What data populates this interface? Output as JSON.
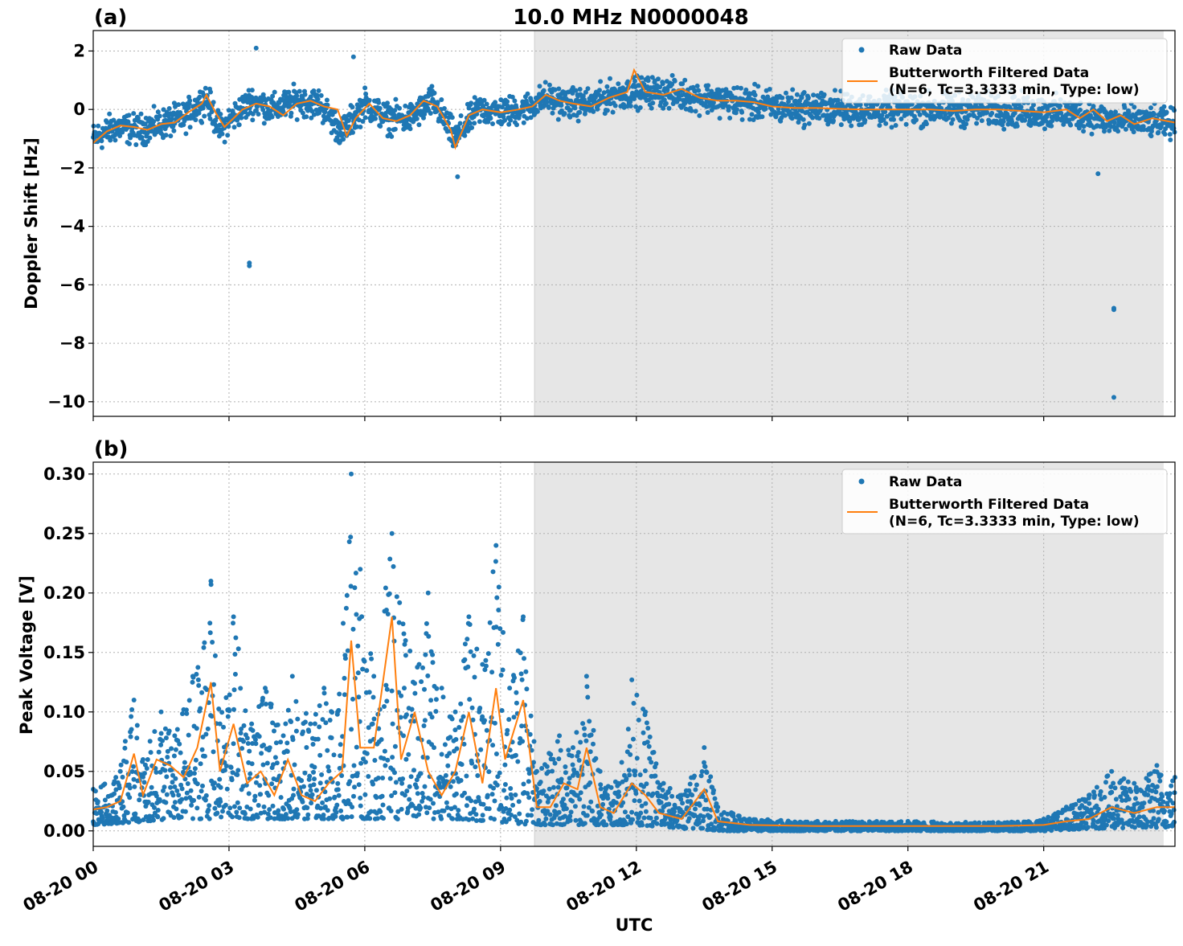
{
  "figure": {
    "title": "10.0 MHz N0000048",
    "xlabel": "UTC"
  },
  "colors": {
    "raw": "#1f77b4",
    "filtered": "#ff7f0e",
    "night_shade": "#e6e6e6",
    "grid": "#b0b0b0"
  },
  "legend": {
    "raw_label": "Raw Data",
    "filtered_label_line1": "Butterworth Filtered Data",
    "filtered_label_line2": "(N=6, Tc=3.3333 min, Type: low)",
    "placement": "upper right"
  },
  "chart_data": [
    {
      "panel_label": "(a)",
      "type": "scatter",
      "ylabel": "Doppler Shift [Hz]",
      "xlim_hours": [
        0,
        23.9
      ],
      "ylim": [
        -10.5,
        2.7
      ],
      "yticks": [
        2,
        0,
        -2,
        -4,
        -6,
        -8,
        -10
      ],
      "ytick_labels": [
        "2",
        "0",
        "−2",
        "−4",
        "−6",
        "−8",
        "−10"
      ],
      "shaded_region_hours": [
        9.75,
        23.65
      ],
      "grid": true,
      "series": [
        {
          "name": "Raw Data",
          "kind": "points",
          "band_center": [
            [
              0,
              -1.0
            ],
            [
              0.5,
              -0.6
            ],
            [
              1.0,
              -0.7
            ],
            [
              1.5,
              -0.5
            ],
            [
              2.0,
              -0.3
            ],
            [
              2.5,
              0.4
            ],
            [
              2.8,
              -0.7
            ],
            [
              3.2,
              -0.1
            ],
            [
              3.5,
              0.3
            ],
            [
              4.0,
              0.0
            ],
            [
              4.5,
              0.3
            ],
            [
              5.0,
              0.2
            ],
            [
              5.5,
              -0.8
            ],
            [
              6.0,
              0.2
            ],
            [
              6.5,
              -0.3
            ],
            [
              7.0,
              -0.3
            ],
            [
              7.5,
              0.3
            ],
            [
              8.0,
              -1.0
            ],
            [
              8.5,
              0.0
            ],
            [
              9.0,
              -0.1
            ],
            [
              9.5,
              0.0
            ],
            [
              10.0,
              0.4
            ],
            [
              10.5,
              0.2
            ],
            [
              11.0,
              0.2
            ],
            [
              11.5,
              0.5
            ],
            [
              12.0,
              0.6
            ],
            [
              12.5,
              0.6
            ],
            [
              13.0,
              0.5
            ],
            [
              13.5,
              0.4
            ],
            [
              14.0,
              0.3
            ],
            [
              14.5,
              0.2
            ],
            [
              15.0,
              0.1
            ],
            [
              16.0,
              0.05
            ],
            [
              17.0,
              0.0
            ],
            [
              18.0,
              0.0
            ],
            [
              19.0,
              0.0
            ],
            [
              20.0,
              0.0
            ],
            [
              21.0,
              -0.1
            ],
            [
              22.0,
              -0.2
            ],
            [
              22.5,
              -0.4
            ],
            [
              23.0,
              -0.4
            ],
            [
              23.9,
              -0.5
            ]
          ],
          "outliers": [
            [
              3.45,
              -5.25
            ],
            [
              3.45,
              -5.35
            ],
            [
              3.6,
              2.1
            ],
            [
              5.75,
              1.8
            ],
            [
              8.05,
              -2.3
            ],
            [
              22.55,
              -6.8
            ],
            [
              22.55,
              -6.85
            ],
            [
              22.55,
              -9.85
            ],
            [
              22.2,
              -2.2
            ]
          ]
        },
        {
          "name": "Butterworth Filtered Data",
          "kind": "line",
          "values": [
            [
              0,
              -1.15
            ],
            [
              0.3,
              -0.75
            ],
            [
              0.6,
              -0.55
            ],
            [
              0.9,
              -0.6
            ],
            [
              1.2,
              -0.7
            ],
            [
              1.5,
              -0.5
            ],
            [
              1.8,
              -0.45
            ],
            [
              2.1,
              -0.1
            ],
            [
              2.4,
              0.2
            ],
            [
              2.5,
              0.5
            ],
            [
              2.7,
              -0.1
            ],
            [
              2.9,
              -0.6
            ],
            [
              3.1,
              -0.3
            ],
            [
              3.3,
              0.0
            ],
            [
              3.6,
              0.2
            ],
            [
              3.9,
              0.1
            ],
            [
              4.2,
              -0.2
            ],
            [
              4.5,
              0.2
            ],
            [
              4.8,
              0.3
            ],
            [
              5.1,
              0.1
            ],
            [
              5.4,
              0.0
            ],
            [
              5.6,
              -0.9
            ],
            [
              5.8,
              -0.3
            ],
            [
              6.1,
              0.2
            ],
            [
              6.4,
              -0.3
            ],
            [
              6.7,
              -0.4
            ],
            [
              7.0,
              -0.2
            ],
            [
              7.3,
              0.3
            ],
            [
              7.6,
              0.1
            ],
            [
              7.9,
              -0.7
            ],
            [
              8.0,
              -1.3
            ],
            [
              8.3,
              -0.2
            ],
            [
              8.6,
              0.0
            ],
            [
              9.0,
              -0.1
            ],
            [
              9.4,
              0.0
            ],
            [
              9.7,
              0.1
            ],
            [
              10.0,
              0.5
            ],
            [
              10.3,
              0.3
            ],
            [
              10.6,
              0.2
            ],
            [
              11.0,
              0.1
            ],
            [
              11.4,
              0.4
            ],
            [
              11.8,
              0.6
            ],
            [
              11.95,
              1.35
            ],
            [
              12.2,
              0.6
            ],
            [
              12.6,
              0.5
            ],
            [
              13.0,
              0.7
            ],
            [
              13.4,
              0.4
            ],
            [
              13.8,
              0.3
            ],
            [
              14.2,
              0.3
            ],
            [
              14.6,
              0.25
            ],
            [
              15.0,
              0.1
            ],
            [
              15.5,
              0.05
            ],
            [
              16.0,
              0.05
            ],
            [
              16.5,
              0.02
            ],
            [
              17.0,
              0.0
            ],
            [
              17.5,
              0.0
            ],
            [
              18.0,
              0.0
            ],
            [
              18.5,
              0.0
            ],
            [
              19.0,
              -0.05
            ],
            [
              19.5,
              0.0
            ],
            [
              20.0,
              0.0
            ],
            [
              20.5,
              -0.05
            ],
            [
              21.0,
              -0.1
            ],
            [
              21.5,
              0.0
            ],
            [
              21.8,
              -0.3
            ],
            [
              22.1,
              0.0
            ],
            [
              22.4,
              -0.4
            ],
            [
              22.7,
              -0.2
            ],
            [
              23.0,
              -0.5
            ],
            [
              23.4,
              -0.3
            ],
            [
              23.9,
              -0.45
            ]
          ]
        }
      ]
    },
    {
      "panel_label": "(b)",
      "type": "scatter",
      "ylabel": "Peak Voltage [V]",
      "xlim_hours": [
        0,
        23.9
      ],
      "ylim": [
        -0.013,
        0.31
      ],
      "yticks": [
        0.3,
        0.25,
        0.2,
        0.15,
        0.1,
        0.05,
        0.0
      ],
      "ytick_labels": [
        "0.30",
        "0.25",
        "0.20",
        "0.15",
        "0.10",
        "0.05",
        "0.00"
      ],
      "shaded_region_hours": [
        9.75,
        23.65
      ],
      "grid": true,
      "series": [
        {
          "name": "Raw Data",
          "kind": "points",
          "envelope_upper": [
            [
              0,
              0.035
            ],
            [
              0.5,
              0.045
            ],
            [
              0.9,
              0.11
            ],
            [
              1.1,
              0.06
            ],
            [
              1.5,
              0.1
            ],
            [
              1.8,
              0.08
            ],
            [
              2.2,
              0.13
            ],
            [
              2.6,
              0.21
            ],
            [
              2.8,
              0.09
            ],
            [
              3.1,
              0.18
            ],
            [
              3.5,
              0.09
            ],
            [
              3.8,
              0.12
            ],
            [
              4.2,
              0.08
            ],
            [
              4.4,
              0.13
            ],
            [
              4.8,
              0.09
            ],
            [
              5.1,
              0.12
            ],
            [
              5.4,
              0.1
            ],
            [
              5.7,
              0.3
            ],
            [
              5.9,
              0.22
            ],
            [
              6.2,
              0.13
            ],
            [
              6.6,
              0.25
            ],
            [
              6.9,
              0.16
            ],
            [
              7.2,
              0.14
            ],
            [
              7.4,
              0.2
            ],
            [
              7.7,
              0.12
            ],
            [
              8.0,
              0.1
            ],
            [
              8.3,
              0.18
            ],
            [
              8.6,
              0.14
            ],
            [
              8.9,
              0.24
            ],
            [
              9.2,
              0.12
            ],
            [
              9.5,
              0.18
            ],
            [
              9.8,
              0.05
            ],
            [
              10.3,
              0.08
            ],
            [
              10.6,
              0.07
            ],
            [
              10.9,
              0.13
            ],
            [
              11.2,
              0.05
            ],
            [
              11.6,
              0.04
            ],
            [
              11.9,
              0.127
            ],
            [
              12.2,
              0.1
            ],
            [
              12.6,
              0.04
            ],
            [
              13.0,
              0.03
            ],
            [
              13.5,
              0.07
            ],
            [
              13.8,
              0.02
            ],
            [
              14.5,
              0.01
            ],
            [
              16.0,
              0.008
            ],
            [
              18.0,
              0.008
            ],
            [
              20.0,
              0.007
            ],
            [
              21.0,
              0.01
            ],
            [
              21.5,
              0.02
            ],
            [
              22.0,
              0.03
            ],
            [
              22.5,
              0.05
            ],
            [
              23.0,
              0.04
            ],
            [
              23.5,
              0.055
            ],
            [
              23.9,
              0.045
            ]
          ],
          "envelope_lower": [
            [
              0,
              0.005
            ],
            [
              2.0,
              0.01
            ],
            [
              4.0,
              0.01
            ],
            [
              6.0,
              0.01
            ],
            [
              8.0,
              0.01
            ],
            [
              9.7,
              0.005
            ],
            [
              10.0,
              0.005
            ],
            [
              12.0,
              0.005
            ],
            [
              13.0,
              0.002
            ],
            [
              14.0,
              0.0
            ],
            [
              18.0,
              0.0
            ],
            [
              21.0,
              0.0
            ],
            [
              22.0,
              0.002
            ],
            [
              23.9,
              0.003
            ]
          ]
        },
        {
          "name": "Butterworth Filtered Data",
          "kind": "line",
          "values": [
            [
              0,
              0.018
            ],
            [
              0.3,
              0.02
            ],
            [
              0.6,
              0.025
            ],
            [
              0.9,
              0.065
            ],
            [
              1.1,
              0.03
            ],
            [
              1.4,
              0.06
            ],
            [
              1.7,
              0.055
            ],
            [
              2.0,
              0.045
            ],
            [
              2.3,
              0.07
            ],
            [
              2.6,
              0.125
            ],
            [
              2.8,
              0.05
            ],
            [
              3.1,
              0.09
            ],
            [
              3.4,
              0.04
            ],
            [
              3.7,
              0.05
            ],
            [
              4.0,
              0.03
            ],
            [
              4.3,
              0.06
            ],
            [
              4.6,
              0.03
            ],
            [
              4.9,
              0.025
            ],
            [
              5.2,
              0.04
            ],
            [
              5.5,
              0.05
            ],
            [
              5.7,
              0.16
            ],
            [
              5.9,
              0.07
            ],
            [
              6.2,
              0.07
            ],
            [
              6.6,
              0.18
            ],
            [
              6.8,
              0.06
            ],
            [
              7.1,
              0.1
            ],
            [
              7.4,
              0.05
            ],
            [
              7.7,
              0.03
            ],
            [
              8.0,
              0.05
            ],
            [
              8.3,
              0.1
            ],
            [
              8.6,
              0.04
            ],
            [
              8.9,
              0.12
            ],
            [
              9.1,
              0.06
            ],
            [
              9.5,
              0.11
            ],
            [
              9.8,
              0.02
            ],
            [
              10.1,
              0.02
            ],
            [
              10.4,
              0.04
            ],
            [
              10.7,
              0.035
            ],
            [
              10.9,
              0.07
            ],
            [
              11.2,
              0.02
            ],
            [
              11.5,
              0.015
            ],
            [
              11.9,
              0.04
            ],
            [
              12.2,
              0.03
            ],
            [
              12.5,
              0.015
            ],
            [
              13.0,
              0.01
            ],
            [
              13.5,
              0.035
            ],
            [
              13.8,
              0.008
            ],
            [
              14.5,
              0.005
            ],
            [
              16.0,
              0.004
            ],
            [
              18.0,
              0.004
            ],
            [
              20.0,
              0.004
            ],
            [
              21.0,
              0.005
            ],
            [
              21.5,
              0.008
            ],
            [
              22.0,
              0.01
            ],
            [
              22.5,
              0.02
            ],
            [
              23.0,
              0.015
            ],
            [
              23.5,
              0.02
            ],
            [
              23.9,
              0.02
            ]
          ]
        }
      ]
    }
  ],
  "xaxis": {
    "tick_hours": [
      0,
      3,
      6,
      9,
      12,
      15,
      18,
      21
    ],
    "tick_labels": [
      "08-20 00",
      "08-20 03",
      "08-20 06",
      "08-20 09",
      "08-20 12",
      "08-20 15",
      "08-20 18",
      "08-20 21"
    ]
  }
}
